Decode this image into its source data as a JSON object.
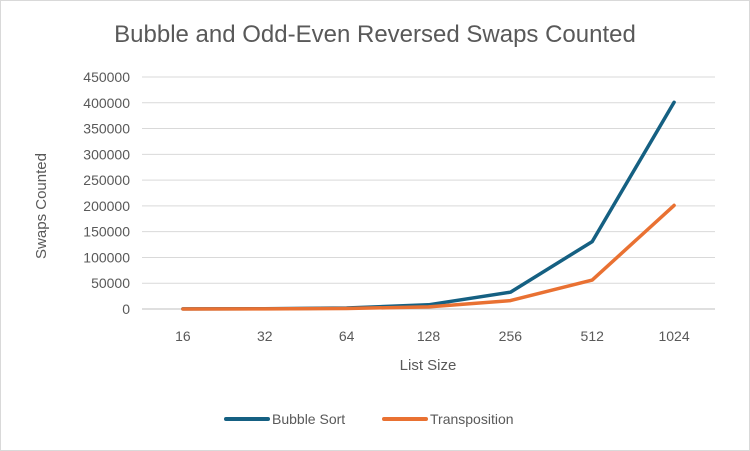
{
  "chart_data": {
    "type": "line",
    "title": "Bubble and Odd-Even Reversed Swaps Counted",
    "xlabel": "List Size",
    "ylabel": "Swaps Counted",
    "categories": [
      "16",
      "32",
      "64",
      "128",
      "256",
      "512",
      "1024"
    ],
    "y_ticks": [
      "0",
      "50000",
      "100000",
      "150000",
      "200000",
      "250000",
      "300000",
      "350000",
      "400000",
      "450000"
    ],
    "ylim": [
      0,
      450000
    ],
    "grid": "horizontal",
    "legend_position": "bottom",
    "series": [
      {
        "name": "Bubble Sort",
        "color": "#156082",
        "values": [
          120,
          496,
          2016,
          8128,
          32640,
          130816,
          401000
        ]
      },
      {
        "name": "Transposition",
        "color": "#E97132",
        "values": [
          64,
          256,
          1024,
          4096,
          16384,
          56000,
          201000
        ]
      }
    ]
  }
}
